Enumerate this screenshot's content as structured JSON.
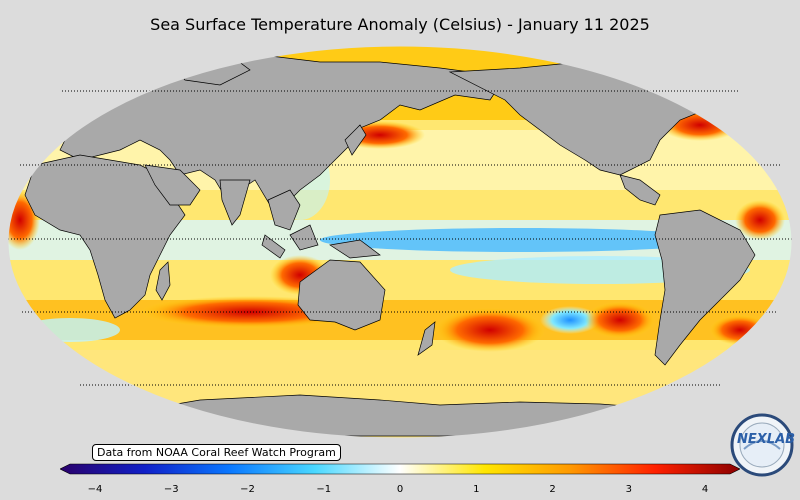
{
  "map": {
    "title": "Sea Surface Temperature Anomaly (Celsius) - January 11 2025",
    "source_note": "Data from NOAA Coral Reef Watch Program",
    "projection": "Robinson",
    "land_color": "#a9a9a9",
    "background_color": "#dcdcdc",
    "colorbar": {
      "min": -4,
      "max": 4,
      "ticks": [
        "−4",
        "−3",
        "−2",
        "−1",
        "0",
        "1",
        "2",
        "3",
        "4"
      ],
      "stops": [
        "#2a006a",
        "#1020c8",
        "#0a78ff",
        "#4ad8ff",
        "#ffffff",
        "#ffe600",
        "#ff9900",
        "#ff2000",
        "#8b0000"
      ]
    },
    "logo": {
      "text": "NEXLAB",
      "name": "nexlab-logo"
    }
  }
}
